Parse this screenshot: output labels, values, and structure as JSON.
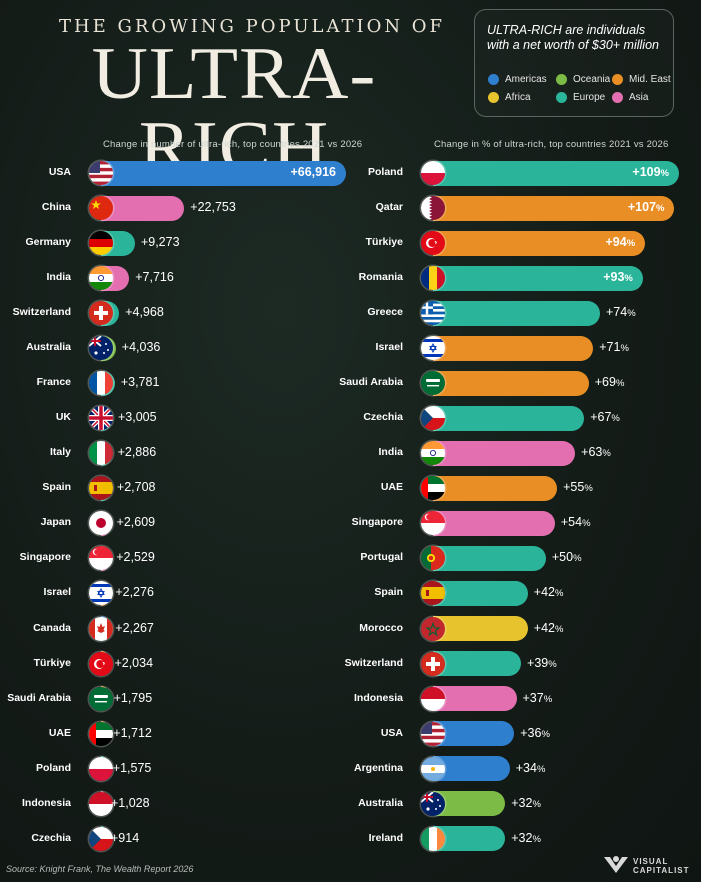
{
  "title": {
    "top": "THE GROWING POPULATION OF",
    "main": "ULTRA-RICH"
  },
  "legend": {
    "title_italic": "ULTRA-RICH are individuals",
    "title_rest": "with a net worth of $30+ million",
    "items": [
      {
        "label": "Americas",
        "color": "#2f7fcf"
      },
      {
        "label": "Oceania",
        "color": "#7cbb45"
      },
      {
        "label": "Mid. East",
        "color": "#e98e24"
      },
      {
        "label": "Africa",
        "color": "#e7c32e"
      },
      {
        "label": "Europe",
        "color": "#2ab59a"
      },
      {
        "label": "Asia",
        "color": "#e46fb0"
      }
    ]
  },
  "source": "Source: Knight Frank, The Wealth Report 2026",
  "logo_text": [
    "VISUAL",
    "CAPITALIST"
  ],
  "chart_data": [
    {
      "type": "bar",
      "orientation": "horizontal",
      "subtitle": "Change in number of ultra-rich, top countries 2021 vs 2026",
      "unit": "count",
      "categories": [
        "USA",
        "China",
        "Germany",
        "India",
        "Switzerland",
        "Australia",
        "France",
        "UK",
        "Italy",
        "Spain",
        "Japan",
        "Singapore",
        "Israel",
        "Canada",
        "Türkiye",
        "Saudi Arabia",
        "UAE",
        "Poland",
        "Indonesia",
        "Czechia"
      ],
      "values": [
        66916,
        22753,
        9273,
        7716,
        4968,
        4036,
        3781,
        3005,
        2886,
        2708,
        2609,
        2529,
        2276,
        2267,
        2034,
        1795,
        1712,
        1575,
        1028,
        914
      ],
      "labels": [
        "+66,916",
        "+22,753",
        "+9,273",
        "+7,716",
        "+4,968",
        "+4,036",
        "+3,781",
        "+3,005",
        "+2,886",
        "+2,708",
        "+2,609",
        "+2,529",
        "+2,276",
        "+2,267",
        "+2,034",
        "+1,795",
        "+1,712",
        "+1,575",
        "+1,028",
        "+914"
      ],
      "regions": [
        "Americas",
        "Asia",
        "Europe",
        "Asia",
        "Europe",
        "Oceania",
        "Europe",
        "Europe",
        "Europe",
        "Europe",
        "Asia",
        "Asia",
        "Mid. East",
        "Americas",
        "Mid. East",
        "Mid. East",
        "Mid. East",
        "Europe",
        "Asia",
        "Europe"
      ]
    },
    {
      "type": "bar",
      "orientation": "horizontal",
      "subtitle": "Change in % of ultra-rich, top countries 2021 vs 2026",
      "unit": "percent",
      "categories": [
        "Poland",
        "Qatar",
        "Türkiye",
        "Romania",
        "Greece",
        "Israel",
        "Saudi Arabia",
        "Czechia",
        "India",
        "UAE",
        "Singapore",
        "Portugal",
        "Spain",
        "Morocco",
        "Switzerland",
        "Indonesia",
        "USA",
        "Argentina",
        "Australia",
        "Ireland"
      ],
      "values": [
        109,
        107,
        94,
        93,
        74,
        71,
        69,
        67,
        63,
        55,
        54,
        50,
        42,
        42,
        39,
        37,
        36,
        34,
        32,
        32
      ],
      "labels": [
        "+109%",
        "+107%",
        "+94%",
        "+93%",
        "+74%",
        "+71%",
        "+69%",
        "+67%",
        "+63%",
        "+55%",
        "+54%",
        "+50%",
        "+42%",
        "+42%",
        "+39%",
        "+37%",
        "+36%",
        "+34%",
        "+32%",
        "+32%"
      ],
      "regions": [
        "Europe",
        "Mid. East",
        "Mid. East",
        "Europe",
        "Europe",
        "Mid. East",
        "Mid. East",
        "Europe",
        "Asia",
        "Mid. East",
        "Asia",
        "Europe",
        "Europe",
        "Africa",
        "Europe",
        "Asia",
        "Americas",
        "Americas",
        "Oceania",
        "Europe"
      ]
    }
  ]
}
